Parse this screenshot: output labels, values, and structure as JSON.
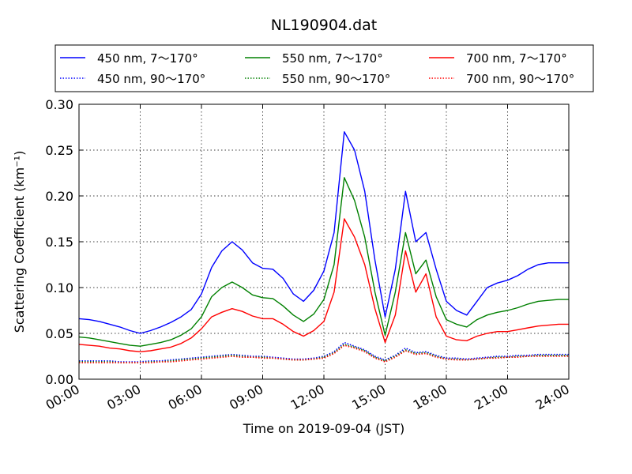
{
  "chart_data": {
    "type": "line",
    "title": "NL190904.dat",
    "xlabel": "Time on 2019-09-04 (JST)",
    "ylabel": "Scattering Coefficient (km⁻¹)",
    "xlim": [
      "00:00",
      "24:00"
    ],
    "ylim": [
      0,
      0.3
    ],
    "grid": true,
    "legend_position": "top",
    "x_ticks": [
      "00:00",
      "03:00",
      "06:00",
      "09:00",
      "12:00",
      "15:00",
      "18:00",
      "21:00",
      "24:00"
    ],
    "y_ticks": [
      "0.00",
      "0.05",
      "0.10",
      "0.15",
      "0.20",
      "0.25",
      "0.30"
    ],
    "x": [
      "00:00",
      "00:30",
      "01:00",
      "01:30",
      "02:00",
      "02:30",
      "03:00",
      "03:30",
      "04:00",
      "04:30",
      "05:00",
      "05:30",
      "06:00",
      "06:30",
      "07:00",
      "07:30",
      "08:00",
      "08:30",
      "09:00",
      "09:30",
      "10:00",
      "10:30",
      "11:00",
      "11:30",
      "12:00",
      "12:30",
      "13:00",
      "13:30",
      "14:00",
      "14:30",
      "15:00",
      "15:30",
      "16:00",
      "16:30",
      "17:00",
      "17:30",
      "18:00",
      "18:30",
      "19:00",
      "19:30",
      "20:00",
      "20:30",
      "21:00",
      "21:30",
      "22:00",
      "22:30",
      "23:00",
      "23:30",
      "24:00"
    ],
    "series": [
      {
        "name": "450 nm, 7～170°",
        "color": "#0000ff",
        "style": "solid",
        "values": [
          0.066,
          0.065,
          0.063,
          0.06,
          0.057,
          0.053,
          0.05,
          0.053,
          0.057,
          0.062,
          0.068,
          0.076,
          0.093,
          0.122,
          0.14,
          0.15,
          0.141,
          0.127,
          0.121,
          0.12,
          0.11,
          0.093,
          0.085,
          0.097,
          0.118,
          0.16,
          0.27,
          0.25,
          0.205,
          0.13,
          0.068,
          0.12,
          0.205,
          0.15,
          0.16,
          0.12,
          0.085,
          0.075,
          0.07,
          0.085,
          0.1,
          0.105,
          0.108,
          0.113,
          0.12,
          0.125,
          0.127,
          0.127,
          0.127
        ]
      },
      {
        "name": "550 nm, 7～170°",
        "color": "#008000",
        "style": "solid",
        "values": [
          0.046,
          0.045,
          0.043,
          0.041,
          0.039,
          0.037,
          0.036,
          0.038,
          0.04,
          0.043,
          0.048,
          0.055,
          0.068,
          0.09,
          0.1,
          0.106,
          0.1,
          0.092,
          0.089,
          0.088,
          0.08,
          0.07,
          0.063,
          0.071,
          0.087,
          0.125,
          0.22,
          0.195,
          0.155,
          0.095,
          0.048,
          0.095,
          0.16,
          0.115,
          0.13,
          0.09,
          0.065,
          0.06,
          0.057,
          0.065,
          0.07,
          0.073,
          0.075,
          0.078,
          0.082,
          0.085,
          0.086,
          0.087,
          0.087
        ]
      },
      {
        "name": "700 nm, 7～170°",
        "color": "#ff0000",
        "style": "solid",
        "values": [
          0.038,
          0.037,
          0.036,
          0.034,
          0.033,
          0.031,
          0.03,
          0.031,
          0.033,
          0.035,
          0.039,
          0.045,
          0.055,
          0.068,
          0.073,
          0.077,
          0.074,
          0.069,
          0.066,
          0.066,
          0.06,
          0.052,
          0.047,
          0.053,
          0.063,
          0.095,
          0.175,
          0.155,
          0.125,
          0.077,
          0.04,
          0.07,
          0.14,
          0.095,
          0.115,
          0.068,
          0.047,
          0.043,
          0.042,
          0.047,
          0.05,
          0.052,
          0.052,
          0.054,
          0.056,
          0.058,
          0.059,
          0.06,
          0.06
        ]
      },
      {
        "name": "450 nm, 90～170°",
        "color": "#0000ff",
        "style": "dotted",
        "values": [
          0.02,
          0.02,
          0.02,
          0.02,
          0.019,
          0.019,
          0.019,
          0.02,
          0.02,
          0.021,
          0.022,
          0.023,
          0.024,
          0.025,
          0.026,
          0.027,
          0.026,
          0.025,
          0.025,
          0.024,
          0.023,
          0.022,
          0.022,
          0.023,
          0.025,
          0.03,
          0.04,
          0.036,
          0.032,
          0.025,
          0.021,
          0.026,
          0.034,
          0.029,
          0.03,
          0.026,
          0.023,
          0.023,
          0.022,
          0.023,
          0.024,
          0.025,
          0.025,
          0.026,
          0.026,
          0.027,
          0.027,
          0.027,
          0.027
        ]
      },
      {
        "name": "550 nm, 90～170°",
        "color": "#008000",
        "style": "dotted",
        "values": [
          0.019,
          0.019,
          0.019,
          0.019,
          0.018,
          0.018,
          0.018,
          0.019,
          0.019,
          0.02,
          0.021,
          0.022,
          0.023,
          0.024,
          0.025,
          0.026,
          0.025,
          0.024,
          0.024,
          0.023,
          0.022,
          0.021,
          0.021,
          0.022,
          0.024,
          0.029,
          0.038,
          0.035,
          0.031,
          0.024,
          0.02,
          0.025,
          0.032,
          0.028,
          0.029,
          0.025,
          0.022,
          0.022,
          0.021,
          0.022,
          0.023,
          0.024,
          0.024,
          0.025,
          0.025,
          0.026,
          0.026,
          0.026,
          0.026
        ]
      },
      {
        "name": "700 nm, 90～170°",
        "color": "#ff0000",
        "style": "dotted",
        "values": [
          0.018,
          0.018,
          0.018,
          0.018,
          0.018,
          0.018,
          0.018,
          0.018,
          0.019,
          0.019,
          0.02,
          0.021,
          0.022,
          0.023,
          0.024,
          0.025,
          0.024,
          0.024,
          0.023,
          0.023,
          0.022,
          0.021,
          0.021,
          0.022,
          0.023,
          0.028,
          0.037,
          0.034,
          0.03,
          0.023,
          0.019,
          0.024,
          0.031,
          0.027,
          0.028,
          0.024,
          0.022,
          0.021,
          0.021,
          0.022,
          0.023,
          0.023,
          0.024,
          0.024,
          0.025,
          0.025,
          0.025,
          0.025,
          0.025
        ]
      }
    ]
  }
}
